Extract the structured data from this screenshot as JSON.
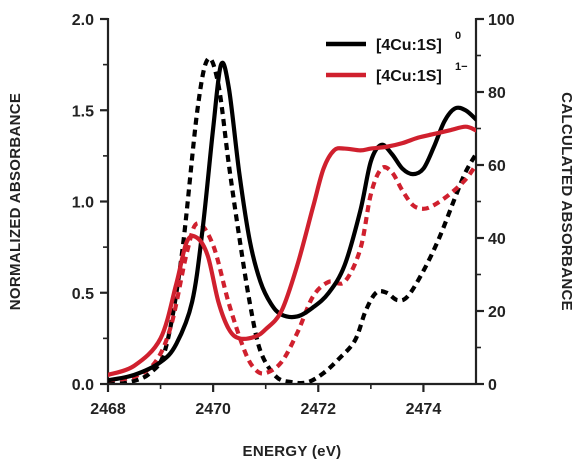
{
  "chart_data": {
    "type": "line",
    "xlabel": "ENERGY (eV)",
    "ylabel_left": "NORMALIZED ABSORBANCE",
    "ylabel_right": "CALCULATED ABSORBANCE",
    "xlim": [
      2468,
      2475
    ],
    "ylim_left": [
      0,
      2.0
    ],
    "ylim_right": [
      0,
      100
    ],
    "x_ticks": [
      2468,
      2470,
      2472,
      2474
    ],
    "x_tick_labels": [
      "2468",
      "2470",
      "2472",
      "2474"
    ],
    "y_ticks_left": [
      0.0,
      0.5,
      1.0,
      1.5,
      2.0
    ],
    "y_tick_labels_left": [
      "0.0",
      "0.5",
      "1.0",
      "1.5",
      "2.0"
    ],
    "y_ticks_right": [
      0,
      20,
      40,
      60,
      80,
      100
    ],
    "y_tick_labels_right": [
      "0",
      "20",
      "40",
      "60",
      "80",
      "100"
    ],
    "grid": false,
    "legend_position": "top-right",
    "legend": [
      {
        "text": "[4Cu:1S]",
        "sup": "0",
        "color": "#000000"
      },
      {
        "text": "[4Cu:1S]",
        "sup": "1−",
        "color": "#d0202e"
      }
    ],
    "series": [
      {
        "legend_index": 0,
        "kind": "experimental",
        "axis": "left",
        "color": "#000000",
        "dashed": false,
        "x": [
          2468.0,
          2468.5,
          2469.0,
          2469.3,
          2469.6,
          2469.8,
          2470.0,
          2470.15,
          2470.3,
          2470.5,
          2470.7,
          2470.9,
          2471.1,
          2471.3,
          2471.6,
          2471.9,
          2472.2,
          2472.5,
          2472.8,
          2473.0,
          2473.2,
          2473.4,
          2473.6,
          2473.8,
          2474.0,
          2474.2,
          2474.4,
          2474.6,
          2474.8,
          2475.0
        ],
        "y": [
          0.02,
          0.05,
          0.12,
          0.22,
          0.45,
          0.85,
          1.4,
          1.75,
          1.62,
          1.15,
          0.78,
          0.56,
          0.44,
          0.38,
          0.37,
          0.42,
          0.5,
          0.65,
          0.95,
          1.22,
          1.31,
          1.26,
          1.18,
          1.15,
          1.18,
          1.3,
          1.44,
          1.51,
          1.5,
          1.45
        ]
      },
      {
        "legend_index": 1,
        "kind": "experimental",
        "axis": "left",
        "color": "#d0202e",
        "dashed": false,
        "x": [
          2468.0,
          2468.5,
          2469.0,
          2469.3,
          2469.5,
          2469.7,
          2469.9,
          2470.1,
          2470.3,
          2470.5,
          2470.8,
          2471.0,
          2471.3,
          2471.6,
          2471.9,
          2472.1,
          2472.3,
          2472.5,
          2472.8,
          2473.0,
          2473.3,
          2473.6,
          2473.9,
          2474.2,
          2474.5,
          2474.8,
          2475.0
        ],
        "y": [
          0.05,
          0.1,
          0.25,
          0.55,
          0.78,
          0.8,
          0.7,
          0.45,
          0.3,
          0.25,
          0.26,
          0.3,
          0.4,
          0.65,
          0.97,
          1.18,
          1.28,
          1.29,
          1.28,
          1.29,
          1.3,
          1.32,
          1.35,
          1.37,
          1.39,
          1.41,
          1.39
        ]
      },
      {
        "legend_index": 0,
        "kind": "calculated",
        "axis": "right",
        "color": "#000000",
        "dashed": true,
        "x": [
          2468.0,
          2468.4,
          2468.8,
          2469.1,
          2469.4,
          2469.7,
          2469.9,
          2470.1,
          2470.3,
          2470.5,
          2470.7,
          2470.9,
          2471.2,
          2471.5,
          2471.8,
          2472.1,
          2472.4,
          2472.7,
          2472.9,
          2473.1,
          2473.3,
          2473.5,
          2473.7,
          2474.0,
          2474.3,
          2474.6,
          2474.8,
          2475.0
        ],
        "y": [
          0,
          0.5,
          3,
          10,
          35,
          75,
          89,
          82,
          60,
          40,
          22,
          9,
          2,
          0.5,
          0.5,
          3,
          7,
          12,
          20,
          25,
          25,
          23,
          24,
          31,
          40,
          51,
          58,
          63
        ]
      },
      {
        "legend_index": 1,
        "kind": "calculated",
        "axis": "right",
        "color": "#d0202e",
        "dashed": true,
        "x": [
          2468.0,
          2468.5,
          2468.9,
          2469.2,
          2469.5,
          2469.7,
          2470.0,
          2470.3,
          2470.6,
          2470.8,
          2471.0,
          2471.3,
          2471.6,
          2471.9,
          2472.2,
          2472.5,
          2472.8,
          2473.0,
          2473.2,
          2473.4,
          2473.6,
          2473.8,
          2474.0,
          2474.2,
          2474.5,
          2474.8,
          2475.0
        ],
        "y": [
          1,
          2,
          6,
          16,
          36,
          44,
          38,
          22,
          9,
          4,
          3,
          6,
          14,
          24,
          28,
          28,
          37,
          52,
          59,
          58,
          53,
          49,
          48,
          49,
          52,
          56,
          60
        ]
      }
    ]
  }
}
